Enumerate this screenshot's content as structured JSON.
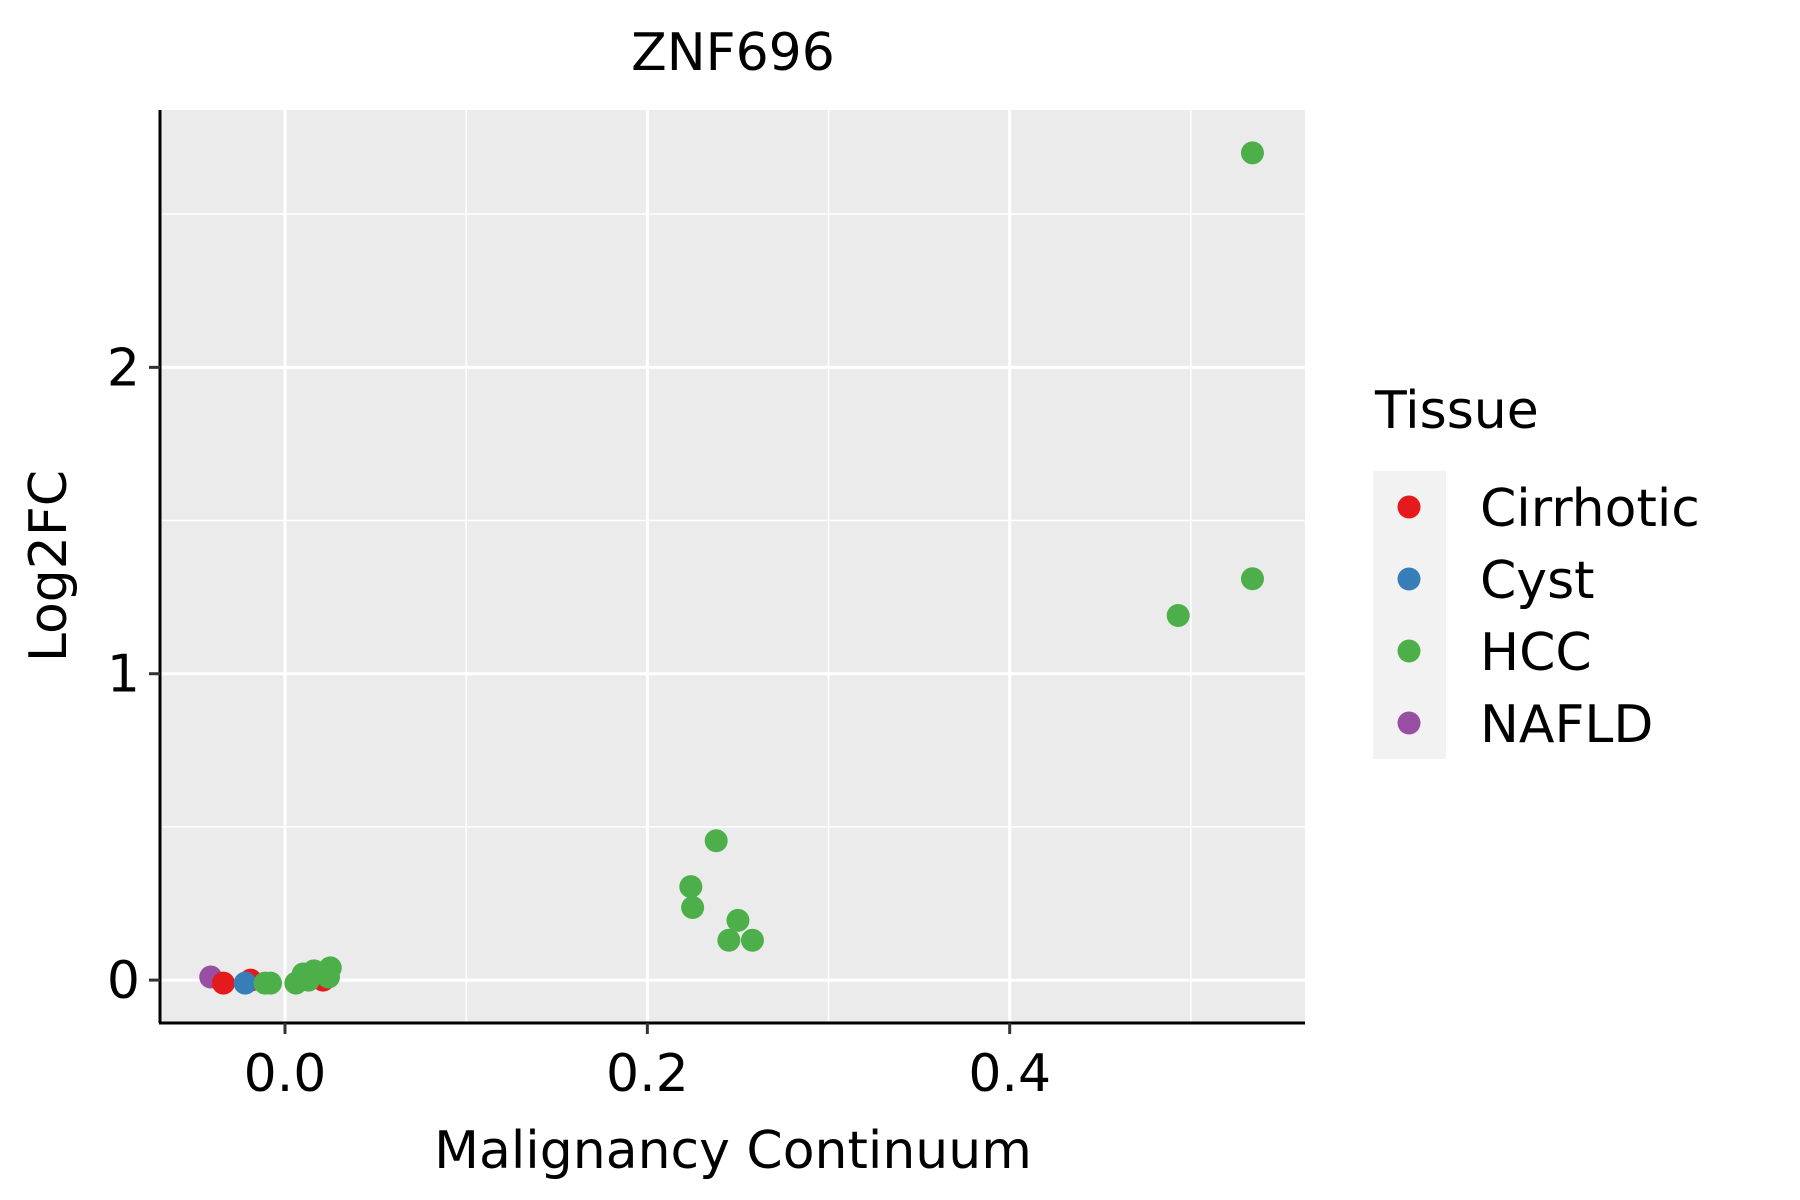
{
  "chart_data": {
    "type": "scatter",
    "title": "ZNF696",
    "xlabel": "Malignancy Continuum",
    "ylabel": "Log2FC",
    "xlim": [
      -0.069,
      0.563
    ],
    "ylim": [
      -0.14,
      2.84
    ],
    "xticks": [
      {
        "v": 0.0,
        "label": "0.0"
      },
      {
        "v": 0.2,
        "label": "0.2"
      },
      {
        "v": 0.4,
        "label": "0.4"
      }
    ],
    "yticks": [
      {
        "v": 0,
        "label": "0"
      },
      {
        "v": 1,
        "label": "1"
      },
      {
        "v": 2,
        "label": "2"
      }
    ],
    "grid": true,
    "legend": {
      "title": "Tissue",
      "placement": "right",
      "entries": [
        {
          "name": "Cirrhotic",
          "color": "#E41A1C"
        },
        {
          "name": "Cyst",
          "color": "#377EB8"
        },
        {
          "name": "HCC",
          "color": "#4DAF4A"
        },
        {
          "name": "NAFLD",
          "color": "#984EA3"
        }
      ]
    },
    "points": [
      {
        "x": -0.041,
        "y": 0.01,
        "group": "NAFLD"
      },
      {
        "x": -0.034,
        "y": -0.01,
        "group": "Cirrhotic"
      },
      {
        "x": -0.019,
        "y": 0.0,
        "group": "Cirrhotic"
      },
      {
        "x": -0.022,
        "y": -0.01,
        "group": "Cyst"
      },
      {
        "x": 0.021,
        "y": 0.0,
        "group": "Cirrhotic"
      },
      {
        "x": -0.011,
        "y": -0.01,
        "group": "HCC"
      },
      {
        "x": -0.008,
        "y": -0.01,
        "group": "HCC"
      },
      {
        "x": 0.006,
        "y": -0.01,
        "group": "HCC"
      },
      {
        "x": 0.01,
        "y": 0.02,
        "group": "HCC"
      },
      {
        "x": 0.013,
        "y": 0.0,
        "group": "HCC"
      },
      {
        "x": 0.016,
        "y": 0.03,
        "group": "HCC"
      },
      {
        "x": 0.024,
        "y": 0.01,
        "group": "HCC"
      },
      {
        "x": 0.025,
        "y": 0.04,
        "group": "HCC"
      },
      {
        "x": 0.224,
        "y": 0.305,
        "group": "HCC"
      },
      {
        "x": 0.225,
        "y": 0.237,
        "group": "HCC"
      },
      {
        "x": 0.238,
        "y": 0.455,
        "group": "HCC"
      },
      {
        "x": 0.245,
        "y": 0.13,
        "group": "HCC"
      },
      {
        "x": 0.25,
        "y": 0.195,
        "group": "HCC"
      },
      {
        "x": 0.258,
        "y": 0.13,
        "group": "HCC"
      },
      {
        "x": 0.493,
        "y": 1.19,
        "group": "HCC"
      },
      {
        "x": 0.534,
        "y": 1.31,
        "group": "HCC"
      },
      {
        "x": 0.534,
        "y": 2.7,
        "group": "HCC"
      }
    ]
  }
}
